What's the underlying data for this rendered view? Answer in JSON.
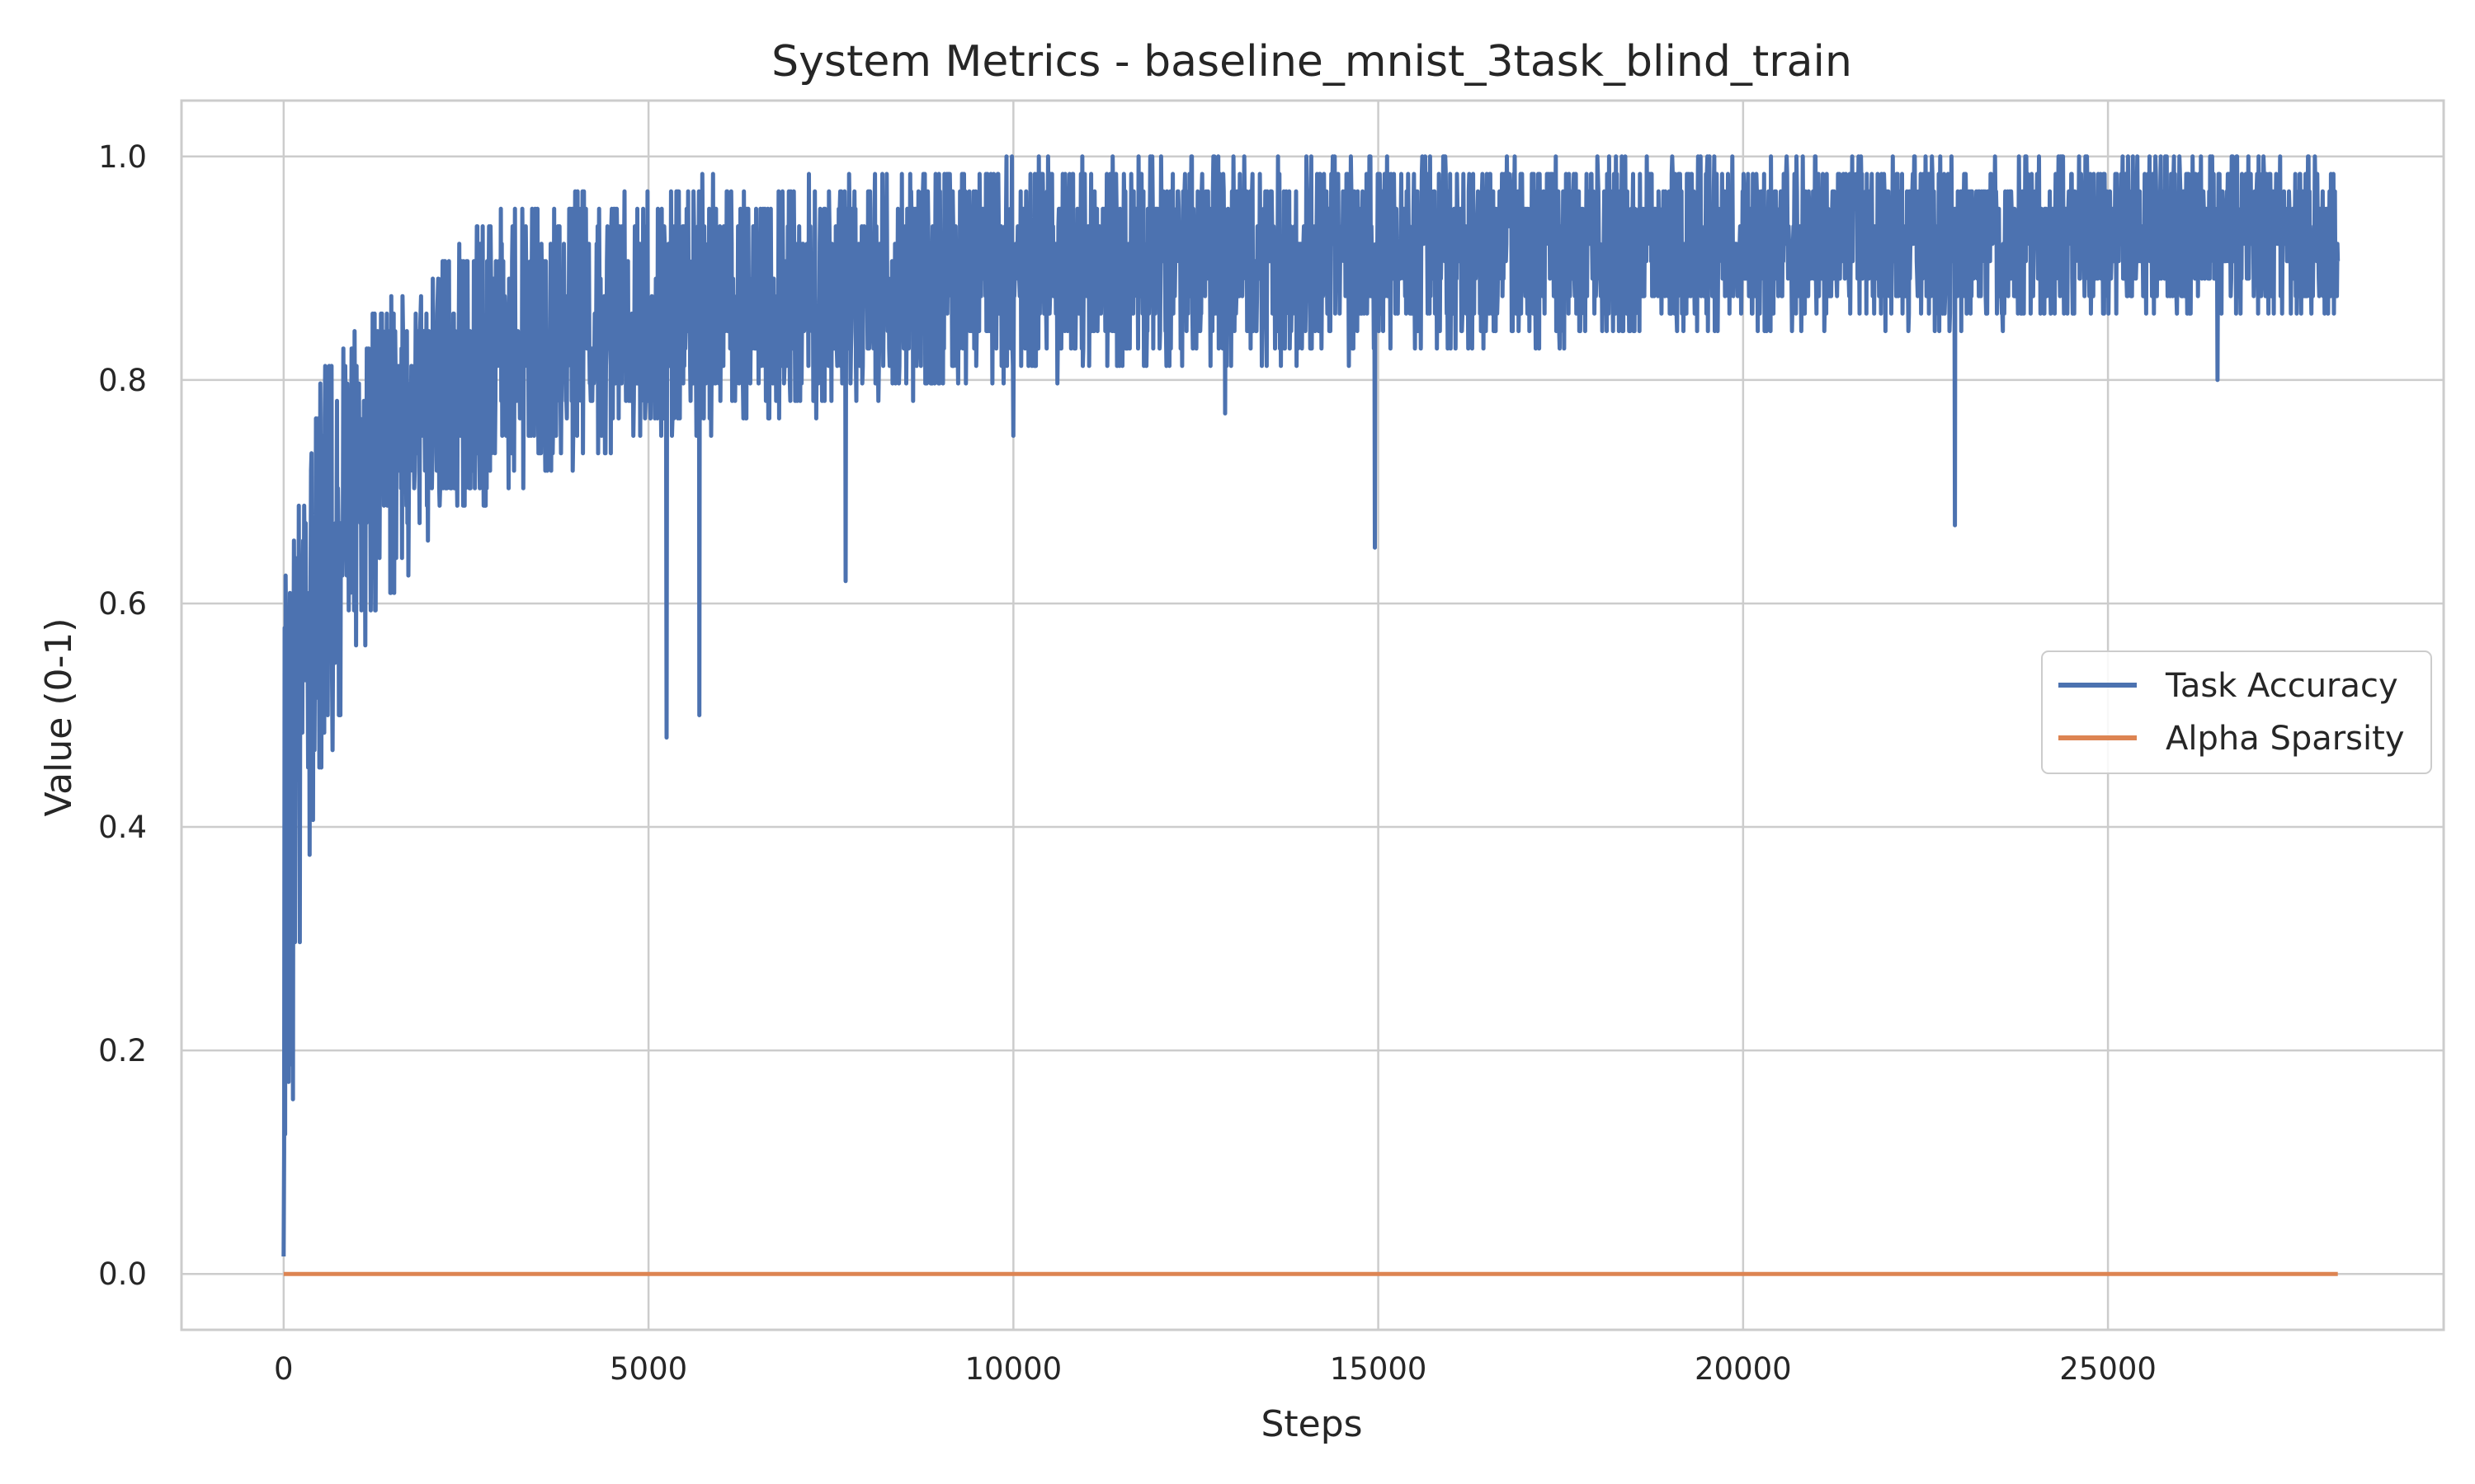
{
  "chart_data": {
    "type": "line",
    "title": "System Metrics - baseline_mnist_3task_blind_train",
    "xlabel": "Steps",
    "ylabel": "Value (0-1)",
    "xlim": [
      -1400,
      29600
    ],
    "ylim": [
      -0.05,
      1.05
    ],
    "xticks": [
      0,
      5000,
      10000,
      15000,
      20000,
      25000
    ],
    "yticks": [
      0.0,
      0.2,
      0.4,
      0.6,
      0.8,
      1.0
    ],
    "xtick_labels": [
      "0",
      "5000",
      "10000",
      "15000",
      "20000",
      "25000"
    ],
    "ytick_labels": [
      "0.0",
      "0.2",
      "0.4",
      "0.6",
      "0.8",
      "1.0"
    ],
    "grid": true,
    "legend_position": "center-right",
    "series": [
      {
        "name": "Task Accuracy",
        "color": "#4c72b0",
        "trend": {
          "x": [
            0,
            30,
            80,
            150,
            250,
            400,
            600,
            800,
            1000,
            1500,
            2000,
            3000,
            4000,
            5000,
            6000,
            7000,
            8000,
            10000,
            12000,
            15000,
            18000,
            20000,
            23000,
            25000,
            28150
          ],
          "y": [
            0.02,
            0.45,
            0.5,
            0.55,
            0.56,
            0.6,
            0.64,
            0.67,
            0.7,
            0.73,
            0.76,
            0.8,
            0.82,
            0.84,
            0.85,
            0.87,
            0.88,
            0.895,
            0.905,
            0.915,
            0.92,
            0.925,
            0.925,
            0.93,
            0.93
          ]
        },
        "max_envelope": {
          "x": [
            0,
            200,
            500,
            1000,
            2000,
            3000,
            4000,
            6000,
            8000,
            9500,
            10000,
            28150
          ],
          "y": [
            0.66,
            0.69,
            0.8,
            0.86,
            0.9,
            0.95,
            0.97,
            0.98,
            0.98,
            0.985,
            1.0,
            1.0
          ]
        },
        "min_envelope": {
          "x": [
            0,
            300,
            600,
            1000,
            1500,
            2000,
            3000,
            5000,
            8000,
            10000,
            15000,
            20000,
            28150
          ],
          "y": [
            0.02,
            0.33,
            0.45,
            0.55,
            0.6,
            0.65,
            0.7,
            0.74,
            0.78,
            0.8,
            0.82,
            0.84,
            0.86
          ]
        },
        "dips": [
          {
            "x": 5250,
            "y": 0.48
          },
          {
            "x": 5700,
            "y": 0.5
          },
          {
            "x": 7700,
            "y": 0.62
          },
          {
            "x": 10000,
            "y": 0.75
          },
          {
            "x": 12900,
            "y": 0.77
          },
          {
            "x": 14950,
            "y": 0.65
          },
          {
            "x": 22900,
            "y": 0.67
          },
          {
            "x": 26500,
            "y": 0.8
          }
        ]
      },
      {
        "name": "Alpha Sparsity",
        "color": "#dd8452",
        "x": [
          0,
          28150
        ],
        "y": [
          0.0,
          0.0
        ]
      }
    ]
  }
}
